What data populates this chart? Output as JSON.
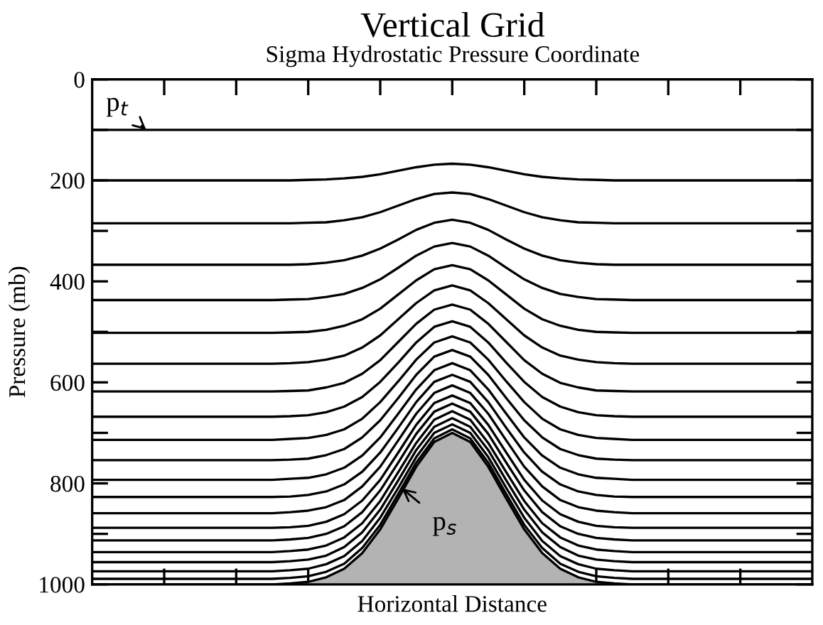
{
  "chart_data": {
    "type": "line",
    "title": "Vertical Grid",
    "subtitle": "Sigma Hydrostatic Pressure Coordinate",
    "xlabel": "Horizontal Distance",
    "ylabel": "Pressure (mb)",
    "categories": [
      null,
      null,
      null,
      null,
      null,
      null,
      null,
      null,
      null,
      null,
      null,
      null,
      null,
      null,
      null,
      null,
      null,
      null,
      null,
      null,
      null,
      null,
      null,
      null,
      null,
      null,
      null,
      null,
      null,
      null,
      null,
      null,
      null,
      null,
      null,
      null,
      null,
      null,
      null,
      null,
      null
    ],
    "ylim": [
      1000,
      0
    ],
    "yticks": [
      0,
      {
        "value": 100,
        "label": null
      },
      200,
      {
        "value": 300,
        "label": null
      },
      400,
      {
        "value": 500,
        "label": null
      },
      600,
      {
        "value": 700,
        "label": null
      },
      800,
      {
        "value": 900,
        "label": null
      },
      1000
    ],
    "grid": false,
    "legend": false,
    "marker": "none",
    "line_style": "solid",
    "series": [
      {
        "color": "#000000",
        "values": [
          100,
          100,
          100,
          100,
          100,
          100,
          100,
          100,
          100,
          100,
          100,
          100,
          100,
          100,
          100,
          100,
          100,
          100,
          100,
          100,
          100,
          100,
          100,
          100,
          100,
          100,
          100,
          100,
          100,
          100,
          100,
          100,
          100,
          100,
          100,
          100,
          100,
          100,
          100,
          100,
          100
        ]
      },
      {
        "color": "#000000",
        "values": [
          200,
          200,
          200,
          200,
          200,
          200,
          200,
          200,
          200,
          200,
          200,
          200,
          199,
          198,
          196,
          193,
          188,
          181,
          174,
          169,
          167,
          169,
          174,
          181,
          188,
          193,
          196,
          198,
          199,
          200,
          200,
          200,
          200,
          200,
          200,
          200,
          200,
          200,
          200,
          200,
          200
        ]
      },
      {
        "color": "#000000",
        "values": [
          285,
          285,
          285,
          285,
          285,
          285,
          285,
          285,
          285,
          285,
          285,
          285,
          284,
          283,
          279,
          273,
          263,
          250,
          237,
          227,
          224,
          227,
          237,
          250,
          263,
          273,
          279,
          283,
          284,
          285,
          285,
          285,
          285,
          285,
          285,
          285,
          285,
          285,
          285,
          285,
          285
        ]
      },
      {
        "color": "#000000",
        "values": [
          367,
          367,
          367,
          367,
          367,
          367,
          367,
          367,
          367,
          367,
          367,
          367,
          366,
          363,
          358,
          349,
          335,
          317,
          298,
          284,
          278,
          284,
          298,
          317,
          335,
          349,
          358,
          363,
          366,
          367,
          367,
          367,
          367,
          367,
          367,
          367,
          367,
          367,
          367,
          367,
          367
        ]
      },
      {
        "color": "#000000",
        "values": [
          437,
          437,
          437,
          437,
          437,
          437,
          437,
          437,
          437,
          437,
          437,
          436,
          435,
          431,
          425,
          413,
          396,
          373,
          349,
          331,
          324,
          331,
          349,
          373,
          396,
          413,
          425,
          431,
          435,
          436,
          437,
          437,
          437,
          437,
          437,
          437,
          437,
          437,
          437,
          437,
          437
        ]
      },
      {
        "color": "#000000",
        "values": [
          502,
          502,
          502,
          502,
          502,
          502,
          502,
          502,
          502,
          502,
          502,
          501,
          500,
          496,
          488,
          475,
          454,
          426,
          398,
          376,
          368,
          376,
          398,
          426,
          454,
          475,
          488,
          496,
          500,
          501,
          502,
          502,
          502,
          502,
          502,
          502,
          502,
          502,
          502,
          502,
          502
        ]
      },
      {
        "color": "#000000",
        "values": [
          563,
          563,
          563,
          563,
          563,
          563,
          563,
          563,
          563,
          563,
          563,
          562,
          560,
          555,
          547,
          531,
          507,
          475,
          443,
          418,
          408,
          418,
          443,
          475,
          507,
          531,
          547,
          555,
          560,
          562,
          563,
          563,
          563,
          563,
          563,
          563,
          563,
          563,
          563,
          563,
          563
        ]
      },
      {
        "color": "#000000",
        "values": [
          618,
          618,
          618,
          618,
          618,
          618,
          618,
          618,
          618,
          618,
          618,
          617,
          616,
          610,
          601,
          583,
          556,
          520,
          484,
          456,
          446,
          456,
          484,
          520,
          556,
          583,
          601,
          610,
          616,
          617,
          618,
          618,
          618,
          618,
          618,
          618,
          618,
          618,
          618,
          618,
          618
        ]
      },
      {
        "color": "#000000",
        "values": [
          668,
          668,
          668,
          668,
          668,
          668,
          668,
          668,
          668,
          668,
          668,
          667,
          665,
          659,
          648,
          629,
          599,
          561,
          521,
          490,
          479,
          490,
          521,
          561,
          599,
          629,
          648,
          659,
          665,
          667,
          668,
          668,
          668,
          668,
          668,
          668,
          668,
          668,
          668,
          668,
          668
        ]
      },
      {
        "color": "#000000",
        "values": [
          714,
          714,
          714,
          714,
          714,
          714,
          714,
          714,
          714,
          714,
          714,
          712,
          710,
          704,
          693,
          672,
          639,
          598,
          555,
          521,
          509,
          521,
          555,
          598,
          639,
          672,
          693,
          704,
          710,
          712,
          714,
          714,
          714,
          714,
          714,
          714,
          714,
          714,
          714,
          714,
          714
        ]
      },
      {
        "color": "#000000",
        "values": [
          754,
          754,
          754,
          754,
          754,
          754,
          754,
          754,
          754,
          754,
          754,
          753,
          751,
          744,
          732,
          709,
          675,
          631,
          585,
          549,
          536,
          549,
          585,
          631,
          675,
          709,
          732,
          744,
          751,
          753,
          754,
          754,
          754,
          754,
          754,
          754,
          754,
          754,
          754,
          754,
          754
        ]
      },
      {
        "color": "#000000",
        "values": [
          793,
          793,
          793,
          793,
          793,
          793,
          793,
          793,
          793,
          793,
          793,
          791,
          789,
          782,
          769,
          745,
          709,
          662,
          614,
          576,
          562,
          576,
          614,
          662,
          709,
          745,
          769,
          782,
          789,
          791,
          793,
          793,
          793,
          793,
          793,
          793,
          793,
          793,
          793,
          793,
          793
        ]
      },
      {
        "color": "#000000",
        "values": [
          827,
          827,
          827,
          827,
          827,
          827,
          827,
          827,
          827,
          827,
          827,
          826,
          823,
          816,
          802,
          777,
          739,
          690,
          639,
          599,
          585,
          599,
          639,
          690,
          739,
          777,
          802,
          816,
          823,
          826,
          827,
          827,
          827,
          827,
          827,
          827,
          827,
          827,
          827,
          827,
          827
        ]
      },
      {
        "color": "#000000",
        "values": [
          859,
          859,
          859,
          859,
          859,
          859,
          859,
          859,
          859,
          859,
          859,
          857,
          854,
          847,
          833,
          806,
          767,
          715,
          662,
          621,
          606,
          621,
          662,
          715,
          767,
          806,
          833,
          847,
          854,
          857,
          859,
          859,
          859,
          859,
          859,
          859,
          859,
          859,
          859,
          859,
          859
        ]
      },
      {
        "color": "#000000",
        "values": [
          888,
          888,
          888,
          888,
          888,
          888,
          888,
          888,
          888,
          888,
          888,
          887,
          884,
          876,
          861,
          834,
          793,
          739,
          684,
          641,
          626,
          641,
          684,
          739,
          793,
          834,
          861,
          876,
          884,
          887,
          888,
          888,
          888,
          888,
          888,
          888,
          888,
          888,
          888,
          888,
          888
        ]
      },
      {
        "color": "#000000",
        "values": [
          913,
          913,
          913,
          913,
          913,
          913,
          913,
          913,
          913,
          913,
          913,
          911,
          908,
          900,
          885,
          857,
          814,
          759,
          702,
          658,
          642,
          658,
          702,
          759,
          814,
          857,
          885,
          900,
          908,
          911,
          913,
          913,
          913,
          913,
          913,
          913,
          913,
          913,
          913,
          913,
          913
        ]
      },
      {
        "color": "#000000",
        "values": [
          936,
          936,
          936,
          936,
          936,
          936,
          936,
          936,
          936,
          936,
          936,
          934,
          931,
          923,
          907,
          879,
          835,
          778,
          720,
          674,
          657,
          674,
          720,
          778,
          835,
          879,
          907,
          923,
          931,
          934,
          936,
          936,
          936,
          936,
          936,
          936,
          936,
          936,
          936,
          936,
          936
        ]
      },
      {
        "color": "#000000",
        "values": [
          956,
          956,
          956,
          956,
          956,
          956,
          956,
          956,
          956,
          956,
          956,
          954,
          951,
          943,
          926,
          897,
          852,
          794,
          734,
          688,
          671,
          688,
          734,
          794,
          852,
          897,
          926,
          943,
          951,
          954,
          956,
          956,
          956,
          956,
          956,
          956,
          956,
          956,
          956,
          956,
          956
        ]
      },
      {
        "color": "#000000",
        "values": [
          974,
          974,
          974,
          974,
          974,
          974,
          974,
          974,
          974,
          974,
          974,
          972,
          969,
          960,
          944,
          914,
          868,
          809,
          748,
          700,
          683,
          700,
          748,
          809,
          868,
          914,
          944,
          960,
          969,
          972,
          974,
          974,
          974,
          974,
          974,
          974,
          974,
          974,
          974,
          974,
          974
        ]
      },
      {
        "color": "#000000",
        "values": [
          989,
          989,
          989,
          989,
          989,
          989,
          989,
          989,
          989,
          989,
          989,
          987,
          984,
          975,
          959,
          928,
          882,
          821,
          759,
          711,
          693,
          711,
          759,
          821,
          882,
          928,
          959,
          975,
          984,
          987,
          989,
          989,
          989,
          989,
          989,
          989,
          989,
          989,
          989,
          989,
          989
        ]
      },
      {
        "color": "#000000",
        "values": [
          1000,
          1000,
          1000,
          1000,
          1000,
          1000,
          1000,
          1000,
          1000,
          1000,
          1000,
          998,
          995,
          986,
          969,
          938,
          891,
          830,
          767,
          718,
          700,
          718,
          767,
          830,
          891,
          938,
          969,
          986,
          995,
          998,
          1000,
          1000,
          1000,
          1000,
          1000,
          1000,
          1000,
          1000,
          1000,
          1000,
          1000
        ]
      }
    ],
    "annotations": [
      "p$_{t}$",
      "p$_{s}$"
    ]
  }
}
